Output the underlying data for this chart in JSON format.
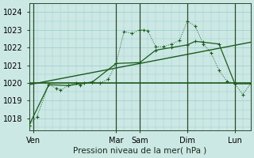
{
  "bg_color": "#cce8e4",
  "grid_color": "#99cccc",
  "line_color": "#1a5c1a",
  "xlim": [
    0,
    28
  ],
  "ylim": [
    1017.3,
    1024.5
  ],
  "yticks": [
    1018,
    1019,
    1020,
    1021,
    1022,
    1023,
    1024
  ],
  "xlabel": "Pression niveau de la mer( hPa )",
  "vlines_x": [
    0.5,
    11,
    14,
    20,
    26
  ],
  "xtick_positions": [
    0.5,
    11,
    14,
    20,
    26
  ],
  "xtick_labels": [
    "Ven",
    "Mar",
    "Sam",
    "Dim",
    "Lun"
  ],
  "series_dotted": {
    "x": [
      0,
      1,
      2.5,
      3.5,
      4,
      5,
      6,
      6.5,
      7,
      8,
      9,
      10,
      11,
      12,
      13,
      14,
      14.5,
      15,
      16,
      17,
      18,
      19,
      20,
      21,
      22,
      23,
      24,
      25,
      26,
      27,
      28
    ],
    "y": [
      1017.6,
      1018.1,
      1019.9,
      1019.7,
      1019.6,
      1019.85,
      1020.0,
      1019.85,
      1020.0,
      1020.05,
      1020.0,
      1020.2,
      1021.1,
      1022.9,
      1022.8,
      1023.0,
      1023.0,
      1022.95,
      1022.05,
      1022.05,
      1022.2,
      1022.4,
      1023.5,
      1023.2,
      1022.2,
      1021.7,
      1020.7,
      1020.1,
      1019.95,
      1019.35,
      1019.95
    ]
  },
  "series_diagonal": {
    "x": [
      0,
      28
    ],
    "y": [
      1019.9,
      1022.3
    ]
  },
  "series_flat": {
    "x": [
      0,
      28
    ],
    "y": [
      1020.0,
      1020.0
    ]
  },
  "series_smooth": {
    "x": [
      0,
      2.5,
      5,
      8,
      11,
      14,
      16,
      18,
      20,
      21,
      22,
      24,
      26,
      28
    ],
    "y": [
      1017.6,
      1019.9,
      1019.85,
      1020.05,
      1021.1,
      1021.15,
      1021.85,
      1022.0,
      1022.15,
      1022.35,
      1022.3,
      1022.2,
      1019.95,
      1019.95
    ]
  }
}
